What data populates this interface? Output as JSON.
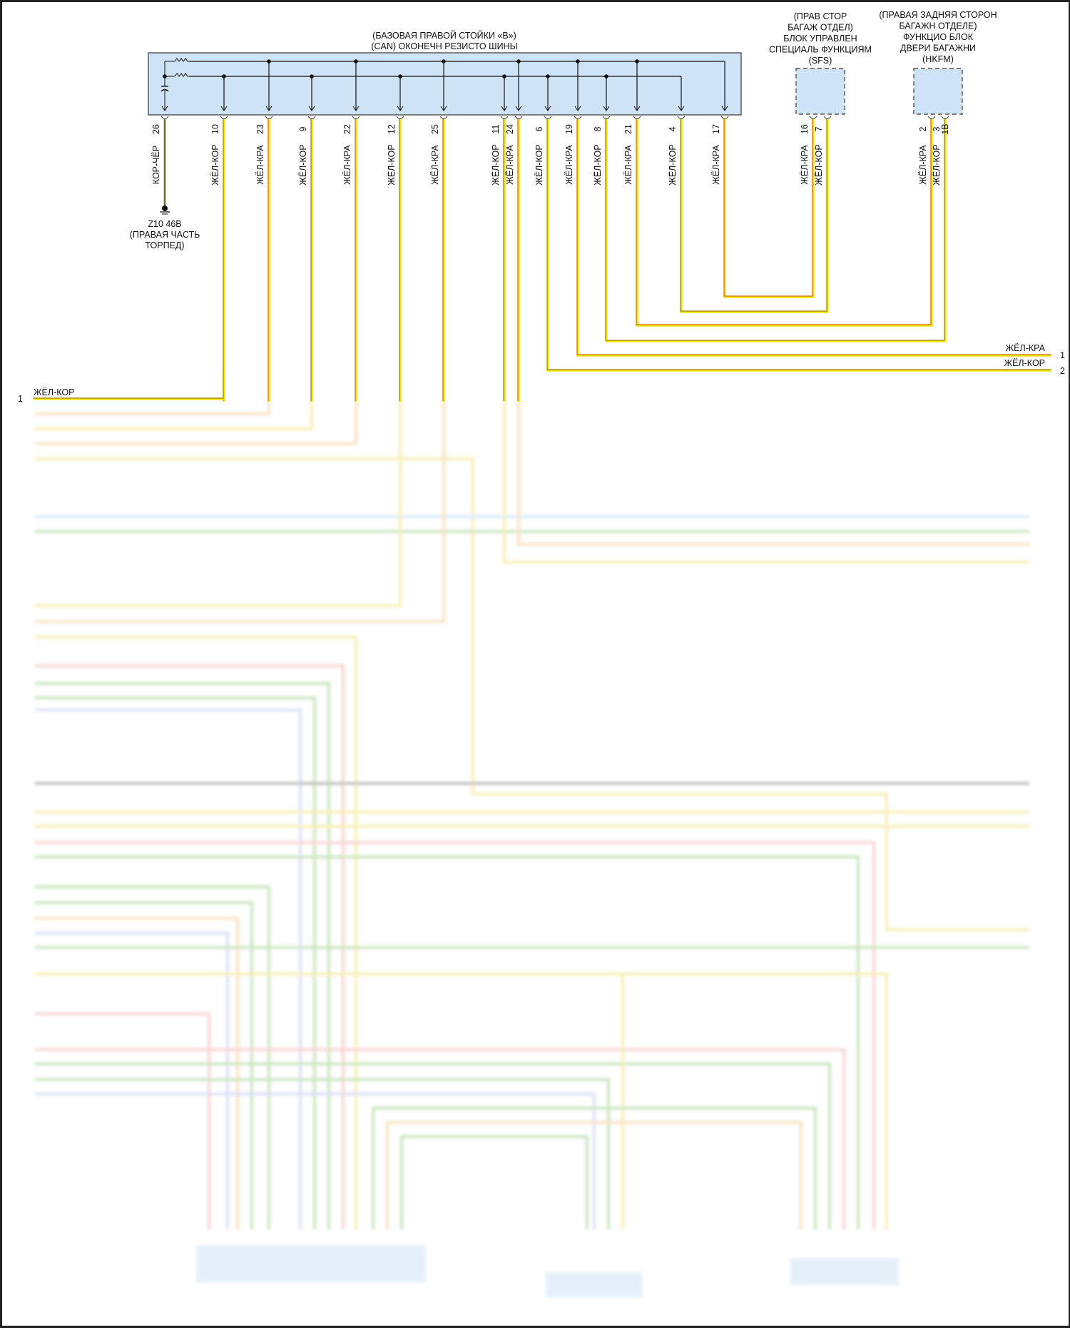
{
  "main_unit": {
    "title_line1": "(БАЗОВАЯ ПРАВОЙ СТОЙКИ «B»)",
    "title_line2": "(CAN) ОКОНЕЧН РЕЗИСТО ШИНЫ",
    "pins": [
      {
        "pin": "26",
        "wire": "КОР-ЧЁР"
      },
      {
        "pin": "10",
        "wire": "ЖЁЛ-КОР"
      },
      {
        "pin": "23",
        "wire": "ЖЁЛ-КРА"
      },
      {
        "pin": "9",
        "wire": "ЖЁЛ-КОР"
      },
      {
        "pin": "22",
        "wire": "ЖЁЛ-КРА"
      },
      {
        "pin": "12",
        "wire": "ЖЁЛ-КОР"
      },
      {
        "pin": "25",
        "wire": "ЖЁЛ-КРА"
      },
      {
        "pin": "11",
        "wire": "ЖЁЛ-КОР"
      },
      {
        "pin": "24",
        "wire": "ЖЁЛ-КРА"
      },
      {
        "pin": "6",
        "wire": "ЖЁЛ-КОР"
      },
      {
        "pin": "19",
        "wire": "ЖЁЛ-КРА"
      },
      {
        "pin": "8",
        "wire": "ЖЁЛ-КОР"
      },
      {
        "pin": "21",
        "wire": "ЖЁЛ-КРА"
      },
      {
        "pin": "4",
        "wire": "ЖЁЛ-КОР"
      },
      {
        "pin": "17",
        "wire": "ЖЁЛ-КРА"
      }
    ]
  },
  "ground": {
    "line1": "Z10 46B",
    "line2": "(ПРАВАЯ ЧАСТЬ",
    "line3": "ТОРПЕД)",
    "icon": "ground-icon"
  },
  "sfs": {
    "lines": [
      "(ПРАВ СТОР",
      "БАГАЖ ОТДЕЛ)",
      "БЛОК УПРАВЛЕН",
      "СПЕЦИАЛЬ ФУНКЦИЯМ",
      "(SFS)"
    ],
    "pins": [
      {
        "pin": "16",
        "wire": "ЖЁЛ-КРА"
      },
      {
        "pin": "7",
        "wire": "ЖЁЛ-КОР"
      }
    ]
  },
  "hkfm": {
    "lines": [
      "(ПРАВАЯ ЗАДНЯЯ СТОРОН",
      "БАГАЖН ОТДЕЛЕ)",
      "ФУНКЦИО БЛОК",
      "ДВЕРИ БАГАЖНИ",
      "(HKFM)"
    ],
    "pins": [
      {
        "pin": "2",
        "wire": "ЖЁЛ-КРА"
      },
      {
        "pin": "3",
        "wire": "ЖЁЛ-КОР"
      },
      {
        "pin": "1B",
        "wire": ""
      }
    ]
  },
  "right_outputs": [
    {
      "wire": "ЖЁЛ-КРА",
      "num": "1"
    },
    {
      "wire": "ЖЁЛ-КОР",
      "num": "2"
    }
  ],
  "lower_left": {
    "wire": "ЖЁЛ-КОР",
    "num": "1"
  },
  "colors": {
    "module_fill": "#cfe3f7",
    "wire_yellow": "#f2e600",
    "stripe_brown": "#8a6a2a",
    "stripe_red": "#d0502a",
    "ground_wire": "#7a6a2a"
  }
}
